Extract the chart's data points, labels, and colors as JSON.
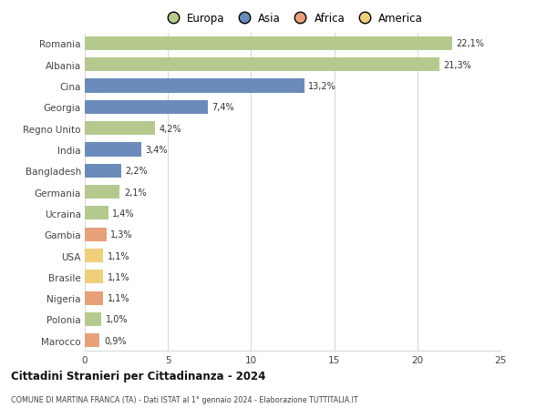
{
  "countries": [
    "Romania",
    "Albania",
    "Cina",
    "Georgia",
    "Regno Unito",
    "India",
    "Bangladesh",
    "Germania",
    "Ucraina",
    "Gambia",
    "USA",
    "Brasile",
    "Nigeria",
    "Polonia",
    "Marocco"
  ],
  "values": [
    22.1,
    21.3,
    13.2,
    7.4,
    4.2,
    3.4,
    2.2,
    2.1,
    1.4,
    1.3,
    1.1,
    1.1,
    1.1,
    1.0,
    0.9
  ],
  "labels": [
    "22,1%",
    "21,3%",
    "13,2%",
    "7,4%",
    "4,2%",
    "3,4%",
    "2,2%",
    "2,1%",
    "1,4%",
    "1,3%",
    "1,1%",
    "1,1%",
    "1,1%",
    "1,0%",
    "0,9%"
  ],
  "continents": [
    "Europa",
    "Europa",
    "Asia",
    "Asia",
    "Europa",
    "Asia",
    "Asia",
    "Europa",
    "Europa",
    "Africa",
    "America",
    "America",
    "Africa",
    "Europa",
    "Africa"
  ],
  "colors": {
    "Europa": "#b5c98e",
    "Asia": "#6b8cba",
    "Africa": "#e8a07a",
    "America": "#f0cf7a"
  },
  "legend_order": [
    "Europa",
    "Asia",
    "Africa",
    "America"
  ],
  "title": "Cittadini Stranieri per Cittadinanza - 2024",
  "subtitle": "COMUNE DI MARTINA FRANCA (TA) - Dati ISTAT al 1° gennaio 2024 - Elaborazione TUTTITALIA.IT",
  "xlim": [
    0,
    25
  ],
  "xticks": [
    0,
    5,
    10,
    15,
    20,
    25
  ],
  "background_color": "#ffffff",
  "grid_color": "#d0d0d0",
  "bar_height": 0.65
}
